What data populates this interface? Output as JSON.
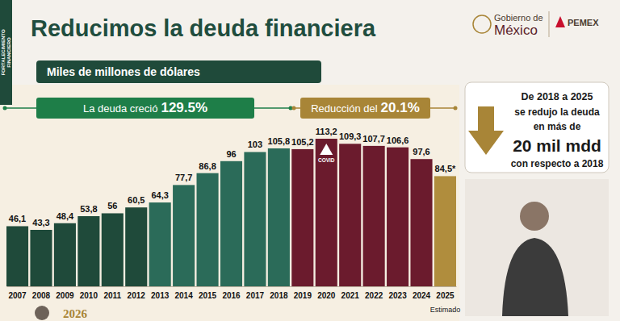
{
  "chart_data": {
    "type": "bar",
    "title": "Reducimos la deuda financiera",
    "subtitle": "Miles de millones de dólares",
    "categories": [
      "2007",
      "2008",
      "2009",
      "2010",
      "2011",
      "2012",
      "2013",
      "2014",
      "2015",
      "2016",
      "2017",
      "2018",
      "2019",
      "2020",
      "2021",
      "2022",
      "2023",
      "2024",
      "2025"
    ],
    "values": [
      46.1,
      43.3,
      48.4,
      53.8,
      56,
      60.5,
      64.3,
      77.7,
      86.8,
      96,
      103,
      105.8,
      105.2,
      113.2,
      109.3,
      107.7,
      106.6,
      97.6,
      84.5
    ],
    "value_labels": [
      "46,1",
      "43,3",
      "48,4",
      "53,8",
      "56",
      "60,5",
      "64,3",
      "77,7",
      "86,8",
      "96",
      "103",
      "105,8",
      "105,2",
      "113,2",
      "109,3",
      "107,7",
      "106,6",
      "97,6",
      "84,5*"
    ],
    "colors": [
      "#1f4a3a",
      "#1f4a3a",
      "#1f4a3a",
      "#1f4a3a",
      "#1f4a3a",
      "#1f4a3a",
      "#2b6b59",
      "#2b6b59",
      "#2b6b59",
      "#2b6b59",
      "#2b6b59",
      "#2b6b59",
      "#6b1b2d",
      "#6b1b2d",
      "#6b1b2d",
      "#6b1b2d",
      "#6b1b2d",
      "#6b1b2d",
      "#b08d3d"
    ],
    "data_labels": true,
    "tick_labels": "x",
    "grid": false,
    "annotations": [
      {
        "text": "La deuda creció",
        "emphasis": "129.5%"
      },
      {
        "text": "Reducción del",
        "emphasis": "20.1%"
      },
      {
        "text": "COVID",
        "x": "2020"
      },
      {
        "text": "Estimado",
        "x": "2025"
      }
    ]
  },
  "page": {
    "side_label": [
      "FORTALECIMIENTO",
      "FINANCIERO"
    ],
    "logos": [
      "Gobierno de",
      "México",
      "PEMEX"
    ],
    "callout": [
      "De 2018 a 2025",
      "se redujo la deuda",
      "en más de",
      "20 mil mdd",
      "con respecto a 2018"
    ],
    "footer": "2026"
  }
}
